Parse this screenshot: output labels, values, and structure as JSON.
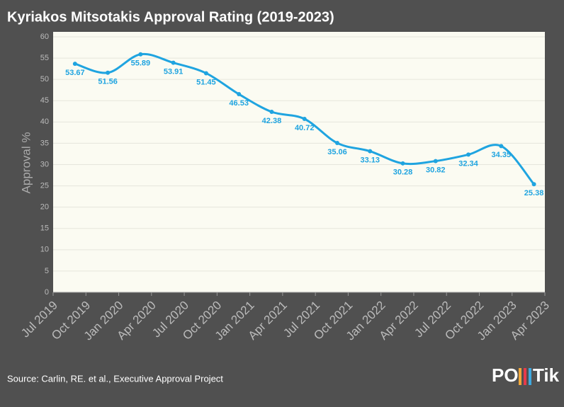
{
  "chart_data": {
    "type": "line",
    "title": "Kyriakos Mitsotakis Approval Rating (2019-2023)",
    "ylabel": "Approval %",
    "source": "Source: Carlin, RE. et al., Executive Approval Project",
    "logo_left": "PO",
    "logo_right": "Tik",
    "x": [
      "2019-09",
      "2019-12",
      "2020-03",
      "2020-06",
      "2020-09",
      "2020-12",
      "2021-03",
      "2021-06",
      "2021-09",
      "2021-12",
      "2022-03",
      "2022-06",
      "2022-09",
      "2022-12",
      "2023-03"
    ],
    "series": [
      {
        "name": "Approval",
        "color": "#1fa4e0",
        "values": [
          53.67,
          51.56,
          55.89,
          53.91,
          51.45,
          46.53,
          42.38,
          40.72,
          35.06,
          33.13,
          30.28,
          30.82,
          32.34,
          34.35,
          25.38
        ]
      }
    ],
    "xlim": [
      "2019-07",
      "2023-04"
    ],
    "xticks": [
      {
        "value": "2019-07",
        "label": "Jul 2019"
      },
      {
        "value": "2019-10",
        "label": "Oct 2019"
      },
      {
        "value": "2020-01",
        "label": "Jan 2020"
      },
      {
        "value": "2020-04",
        "label": "Apr 2020"
      },
      {
        "value": "2020-07",
        "label": "Jul 2020"
      },
      {
        "value": "2020-10",
        "label": "Oct 2020"
      },
      {
        "value": "2021-01",
        "label": "Jan 2021"
      },
      {
        "value": "2021-04",
        "label": "Apr 2021"
      },
      {
        "value": "2021-07",
        "label": "Jul 2021"
      },
      {
        "value": "2021-10",
        "label": "Oct 2021"
      },
      {
        "value": "2022-01",
        "label": "Jan 2022"
      },
      {
        "value": "2022-04",
        "label": "Apr 2022"
      },
      {
        "value": "2022-07",
        "label": "Jul 2022"
      },
      {
        "value": "2022-10",
        "label": "Oct 2022"
      },
      {
        "value": "2023-01",
        "label": "Jan 2023"
      },
      {
        "value": "2023-04",
        "label": "Apr 2023"
      }
    ],
    "ylim": [
      0,
      60
    ],
    "yticks": [
      0,
      5,
      10,
      15,
      20,
      25,
      30,
      35,
      40,
      45,
      50,
      55,
      60
    ],
    "grid": true
  }
}
